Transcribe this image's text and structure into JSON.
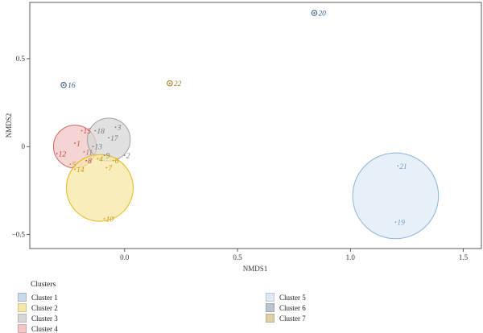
{
  "chart_data": {
    "type": "scatter",
    "title": "",
    "xlabel": "NMDS1",
    "ylabel": "NMDS2",
    "xlim": [
      -0.42,
      1.58
    ],
    "ylim": [
      -0.58,
      0.82
    ],
    "xticks": [
      0.0,
      0.5,
      1.0,
      1.5
    ],
    "xtick_labels": [
      "0.0",
      "0.5",
      "1.0",
      "1.5"
    ],
    "yticks": [
      -0.5,
      0.0,
      0.5
    ],
    "ytick_labels": [
      "−0.5",
      "0",
      "0.5"
    ],
    "grid": false,
    "legend_title": "Clusters",
    "legend_placement": "bottom",
    "clusters": [
      {
        "name": "Cluster 1",
        "fill": "#c8d9ee",
        "stroke": "#5b8fc4",
        "label_color": "#2a6cab"
      },
      {
        "name": "Cluster 2",
        "fill": "#f7e7a6",
        "stroke": "#e3b717",
        "label_color": "#c99a10"
      },
      {
        "name": "Cluster 3",
        "fill": "#d7d7d7",
        "stroke": "#a0a0a0",
        "label_color": "#7a7a7a"
      },
      {
        "name": "Cluster 4",
        "fill": "#f2c6c6",
        "stroke": "#d06565",
        "label_color": "#c24848"
      },
      {
        "name": "Cluster 5",
        "fill": "#dfe9f6",
        "stroke": "#8cb4dc",
        "label_color": "#6f9ed0"
      },
      {
        "name": "Cluster 6",
        "fill": "#b9c4cf",
        "stroke": "#4e6f91",
        "label_color": "#2c5a87"
      },
      {
        "name": "Cluster 7",
        "fill": "#ddd0a5",
        "stroke": "#a8872e",
        "label_color": "#9a7a22"
      }
    ],
    "ellipses": [
      {
        "cluster": "Cluster 4",
        "cx": -0.22,
        "cy": 0.0,
        "r": 0.095
      },
      {
        "cluster": "Cluster 3",
        "cx": -0.07,
        "cy": 0.04,
        "r": 0.095
      },
      {
        "cluster": "Cluster 2",
        "cx": -0.11,
        "cy": -0.235,
        "r": 0.148
      },
      {
        "cluster": "Cluster 5",
        "cx": 1.2,
        "cy": -0.28,
        "r": 0.19
      }
    ],
    "points": [
      {
        "label": "1",
        "x": -0.22,
        "y": 0.02,
        "cluster": "Cluster 4"
      },
      {
        "label": "2",
        "x": 0.0,
        "y": -0.05,
        "cluster": "Cluster 3"
      },
      {
        "label": "3",
        "x": -0.04,
        "y": 0.11,
        "cluster": "Cluster 3"
      },
      {
        "label": "4",
        "x": -0.12,
        "y": -0.07,
        "cluster": "Cluster 2"
      },
      {
        "label": "5",
        "x": -0.24,
        "y": -0.1,
        "cluster": "Cluster 2"
      },
      {
        "label": "6",
        "x": -0.05,
        "y": -0.08,
        "cluster": "Cluster 2"
      },
      {
        "label": "7",
        "x": -0.08,
        "y": -0.12,
        "cluster": "Cluster 2"
      },
      {
        "label": "8",
        "x": -0.17,
        "y": -0.08,
        "cluster": "Cluster 4"
      },
      {
        "label": "9",
        "x": -0.09,
        "y": -0.05,
        "cluster": "Cluster 3"
      },
      {
        "label": "10",
        "x": -0.09,
        "y": -0.41,
        "cluster": "Cluster 2"
      },
      {
        "label": "11",
        "x": -0.18,
        "y": -0.03,
        "cluster": "Cluster 3"
      },
      {
        "label": "12",
        "x": -0.3,
        "y": -0.04,
        "cluster": "Cluster 4"
      },
      {
        "label": "13",
        "x": -0.14,
        "y": 0.0,
        "cluster": "Cluster 3"
      },
      {
        "label": "14",
        "x": -0.22,
        "y": -0.13,
        "cluster": "Cluster 2"
      },
      {
        "label": "15",
        "x": -0.19,
        "y": 0.09,
        "cluster": "Cluster 4"
      },
      {
        "label": "16",
        "x": -0.27,
        "y": 0.35,
        "cluster": "Cluster 6",
        "marker": true
      },
      {
        "label": "17",
        "x": -0.07,
        "y": 0.05,
        "cluster": "Cluster 3"
      },
      {
        "label": "18",
        "x": -0.13,
        "y": 0.09,
        "cluster": "Cluster 3"
      },
      {
        "label": "19",
        "x": 1.2,
        "y": -0.43,
        "cluster": "Cluster 5"
      },
      {
        "label": "20",
        "x": 0.84,
        "y": 0.76,
        "cluster": "Cluster 6",
        "marker": true
      },
      {
        "label": "21",
        "x": 1.21,
        "y": -0.11,
        "cluster": "Cluster 5"
      },
      {
        "label": "22",
        "x": 0.2,
        "y": 0.36,
        "cluster": "Cluster 7",
        "marker": true
      }
    ]
  }
}
